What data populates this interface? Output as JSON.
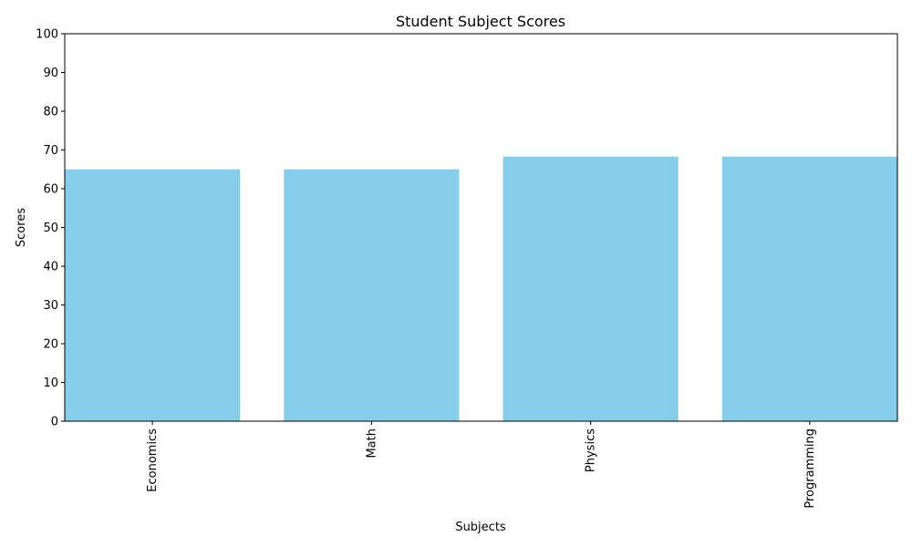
{
  "chart_data": {
    "type": "bar",
    "title": "Student Subject Scores",
    "xlabel": "Subjects",
    "ylabel": "Scores",
    "categories": [
      "Economics",
      "Math",
      "Physics",
      "Programming"
    ],
    "values": [
      65,
      65,
      68.3,
      68.3
    ],
    "ylim": [
      0,
      100
    ],
    "yticks": [
      0,
      10,
      20,
      30,
      40,
      50,
      60,
      70,
      80,
      90,
      100
    ],
    "bar_color": "#87CEEB",
    "grid": false,
    "legend": "none"
  }
}
